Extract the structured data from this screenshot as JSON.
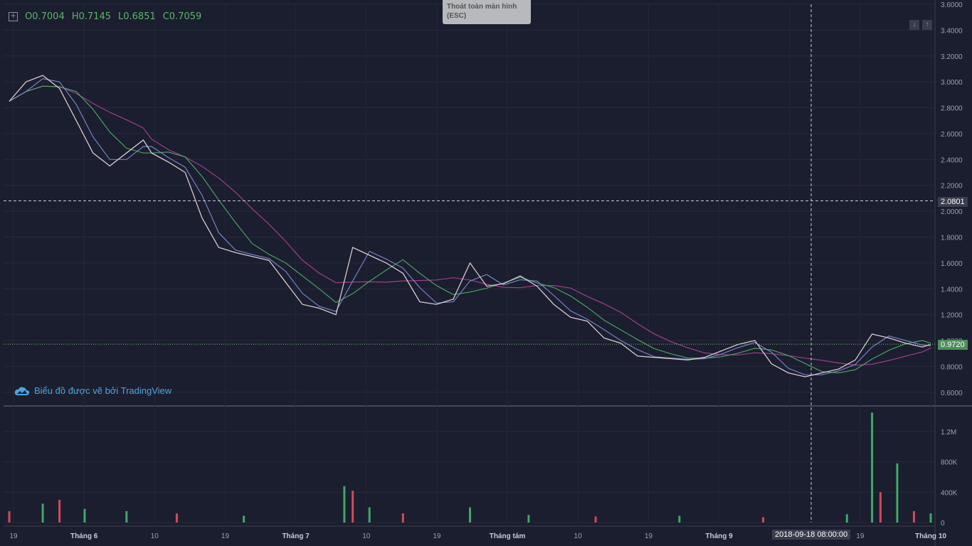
{
  "header": {
    "ohlc_open": "O0.7004",
    "ohlc_high": "H0.7145",
    "ohlc_low": "L0.6851",
    "ohlc_close": "C0.7059"
  },
  "tooltip": {
    "line1": "Thoát toàn màn hình",
    "line2": "(ESC)"
  },
  "watermark": {
    "text": "Biểu đồ được vẽ bởi TradingView"
  },
  "crosshair": {
    "price_label": "2.0801",
    "time_label": "2018-09-18 08:00:00"
  },
  "last_price": {
    "label": "0.9720"
  },
  "colors": {
    "bg": "#1b1e2e",
    "up": "#3fa86b",
    "down": "#d14a5c",
    "ma_fast": "#7e8bd6",
    "ma_mid": "#4fae6c",
    "ma_slow": "#b23f9c"
  },
  "chart_data": {
    "type": "line",
    "price_axis": {
      "ylim": [
        0.5,
        3.6
      ],
      "ticks": [
        "0.6000",
        "0.8000",
        "1.0000",
        "1.2000",
        "1.4000",
        "1.6000",
        "1.8000",
        "2.0000",
        "2.2000",
        "2.4000",
        "2.6000",
        "2.8000",
        "3.0000",
        "3.2000",
        "3.4000",
        "3.6000"
      ]
    },
    "volume_axis": {
      "ylim": [
        0,
        1500000
      ],
      "ticks": [
        "0",
        "400K",
        "800K",
        "1.2M"
      ]
    },
    "x_ticks": [
      "19",
      "Tháng 6",
      "10",
      "19",
      "Tháng 7",
      "10",
      "19",
      "Tháng tám",
      "10",
      "19",
      "Tháng 9",
      "10",
      "19",
      "Tháng 10"
    ],
    "price_path": [
      [
        0,
        2.85
      ],
      [
        2,
        3.0
      ],
      [
        4,
        3.05
      ],
      [
        6,
        2.95
      ],
      [
        8,
        2.7
      ],
      [
        10,
        2.45
      ],
      [
        12,
        2.35
      ],
      [
        14,
        2.45
      ],
      [
        16,
        2.55
      ],
      [
        17,
        2.45
      ],
      [
        19,
        2.38
      ],
      [
        21,
        2.3
      ],
      [
        23,
        1.95
      ],
      [
        25,
        1.72
      ],
      [
        27,
        1.68
      ],
      [
        29,
        1.65
      ],
      [
        31,
        1.62
      ],
      [
        33,
        1.45
      ],
      [
        35,
        1.28
      ],
      [
        37,
        1.25
      ],
      [
        39,
        1.2
      ],
      [
        41,
        1.72
      ],
      [
        43,
        1.66
      ],
      [
        45,
        1.6
      ],
      [
        47,
        1.52
      ],
      [
        49,
        1.3
      ],
      [
        51,
        1.28
      ],
      [
        53,
        1.32
      ],
      [
        55,
        1.6
      ],
      [
        57,
        1.42
      ],
      [
        59,
        1.44
      ],
      [
        61,
        1.5
      ],
      [
        63,
        1.42
      ],
      [
        65,
        1.28
      ],
      [
        67,
        1.18
      ],
      [
        69,
        1.15
      ],
      [
        71,
        1.02
      ],
      [
        73,
        0.98
      ],
      [
        75,
        0.88
      ],
      [
        77,
        0.87
      ],
      [
        79,
        0.86
      ],
      [
        81,
        0.85
      ],
      [
        83,
        0.87
      ],
      [
        85,
        0.92
      ],
      [
        87,
        0.97
      ],
      [
        89,
        1.0
      ],
      [
        91,
        0.82
      ],
      [
        93,
        0.75
      ],
      [
        95,
        0.72
      ],
      [
        97,
        0.75
      ],
      [
        99,
        0.78
      ],
      [
        101,
        0.85
      ],
      [
        103,
        1.05
      ],
      [
        105,
        1.02
      ],
      [
        107,
        0.98
      ],
      [
        109,
        0.95
      ],
      [
        110,
        0.97
      ]
    ],
    "volume_bars": [
      {
        "i": 0,
        "v": 150000,
        "up": false
      },
      {
        "i": 4,
        "v": 250000,
        "up": true
      },
      {
        "i": 6,
        "v": 300000,
        "up": false
      },
      {
        "i": 9,
        "v": 180000,
        "up": true
      },
      {
        "i": 14,
        "v": 150000,
        "up": true
      },
      {
        "i": 20,
        "v": 120000,
        "up": false
      },
      {
        "i": 28,
        "v": 90000,
        "up": true
      },
      {
        "i": 40,
        "v": 480000,
        "up": true
      },
      {
        "i": 41,
        "v": 420000,
        "up": false
      },
      {
        "i": 43,
        "v": 200000,
        "up": true
      },
      {
        "i": 47,
        "v": 120000,
        "up": false
      },
      {
        "i": 55,
        "v": 200000,
        "up": true
      },
      {
        "i": 62,
        "v": 100000,
        "up": true
      },
      {
        "i": 70,
        "v": 80000,
        "up": false
      },
      {
        "i": 80,
        "v": 90000,
        "up": true
      },
      {
        "i": 90,
        "v": 70000,
        "up": false
      },
      {
        "i": 100,
        "v": 110000,
        "up": true
      },
      {
        "i": 103,
        "v": 1450000,
        "up": true
      },
      {
        "i": 104,
        "v": 400000,
        "up": false
      },
      {
        "i": 106,
        "v": 780000,
        "up": true
      },
      {
        "i": 108,
        "v": 150000,
        "up": false
      },
      {
        "i": 110,
        "v": 120000,
        "up": true
      }
    ]
  }
}
